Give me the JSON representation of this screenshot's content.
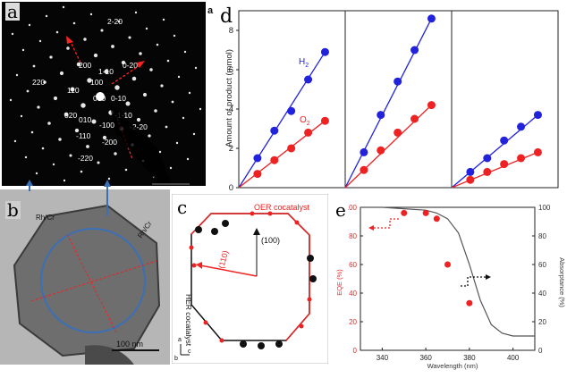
{
  "panel_labels": {
    "a": "a",
    "b": "b",
    "c": "c",
    "d": "d",
    "e": "e",
    "d_small": "a"
  },
  "panel_a": {
    "spot_labels": [
      "2-20",
      "200",
      "1-10",
      "0-20",
      "220",
      "110",
      "100",
      "000",
      "0-10",
      "020",
      "010",
      "-1-10",
      "-100",
      "-2-20",
      "-110",
      "-200",
      "-220"
    ],
    "colors": {
      "background": "#000000",
      "arrow": "#ff2222",
      "text": "#ffffff"
    }
  },
  "panel_b": {
    "labels": [
      "Rh/Cr",
      "Rh/Cr"
    ],
    "scale_bar": "100 nm",
    "circle_color": "#3b6fb6"
  },
  "panel_c": {
    "oer_label": "OER cocatalyst",
    "her_label": "HER cocatalyst",
    "dir_100": "(100)",
    "dir_110": "(110)",
    "axes": [
      "a",
      "b",
      "c"
    ]
  },
  "chart_data": [
    {
      "type": "scatter",
      "ylabel": "Amount of product (mmol)",
      "ylim": [
        0,
        9
      ],
      "yticks": [
        "0",
        "2",
        "4",
        "6",
        "8"
      ],
      "series": [
        {
          "name": "H2",
          "color": "#2222dd",
          "panels": [
            [
              1.5,
              2.9,
              3.9,
              5.5,
              6.9
            ],
            [
              1.8,
              3.7,
              5.4,
              7.0,
              8.6
            ],
            [
              0.8,
              1.5,
              2.4,
              3.1,
              3.7
            ]
          ]
        },
        {
          "name": "O2",
          "color": "#ee2222",
          "panels": [
            [
              0.7,
              1.4,
              2.0,
              2.8,
              3.4
            ],
            [
              0.9,
              1.9,
              2.8,
              3.5,
              4.2
            ],
            [
              0.4,
              0.8,
              1.2,
              1.5,
              1.8
            ]
          ]
        }
      ],
      "legend": {
        "H2": "H",
        "H2_sub": "2",
        "O2": "O",
        "O2_sub": "2"
      }
    },
    {
      "type": "line",
      "xlabel": "Wavelength (nm)",
      "ylabel_left": "EQE (%)",
      "ylabel_right": "Absorptance (%)",
      "xlim": [
        330,
        410
      ],
      "ylim": [
        0,
        100
      ],
      "xticks": [
        "340",
        "360",
        "380",
        "400"
      ],
      "yticks": [
        "0",
        "20",
        "40",
        "60",
        "80",
        "100"
      ],
      "eqe_points": {
        "x": [
          350,
          360,
          365,
          370,
          380
        ],
        "y": [
          96,
          96,
          92,
          60,
          33
        ]
      },
      "absorptance_curve": {
        "x": [
          330,
          340,
          350,
          360,
          365,
          370,
          375,
          380,
          385,
          390,
          395,
          400,
          410
        ],
        "y": [
          100,
          100,
          99,
          98,
          96,
          92,
          82,
          60,
          35,
          18,
          12,
          10,
          10
        ]
      },
      "colors": {
        "eqe": "#ee2222",
        "absorptance": "#555555"
      }
    }
  ]
}
